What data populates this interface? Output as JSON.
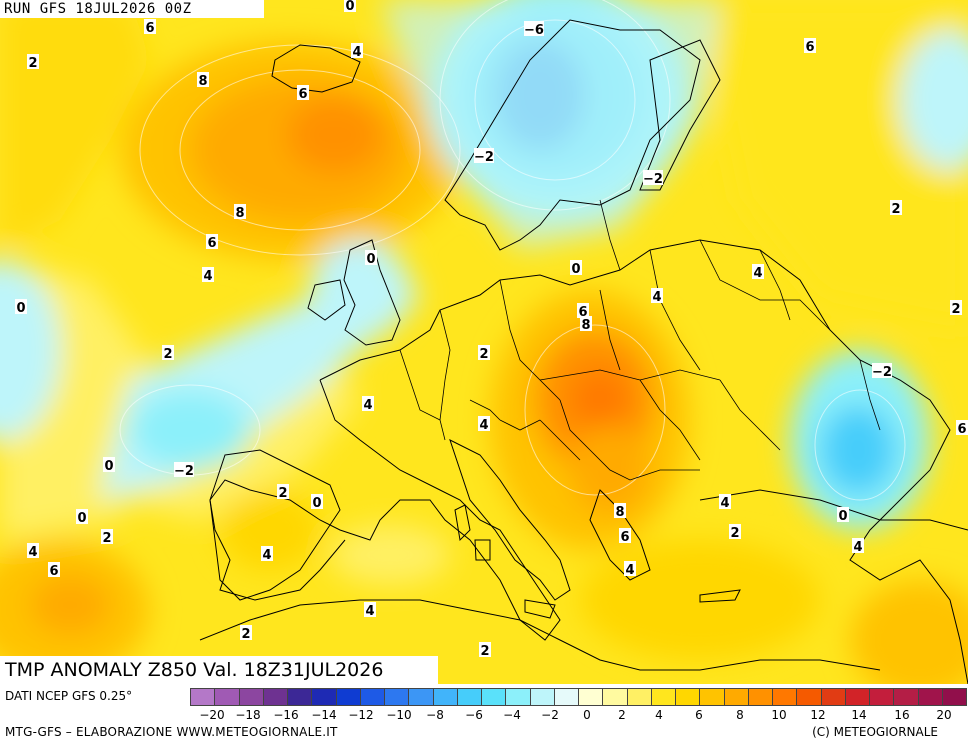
{
  "header": {
    "run_label": "RUN GFS 18JUL2026 00Z"
  },
  "title": {
    "text": "TMP ANOMALY Z850 Val. 18Z31JUL2026"
  },
  "footer": {
    "source": "DATI NCEP GFS 0.25°",
    "credit_left": "MTG-GFS – ELABORAZIONE WWW.METEOGIORNALE.IT",
    "credit_right": "(C) METEOGIORNALE"
  },
  "legend": {
    "colors": [
      "#b478c8",
      "#a05ab4",
      "#8c46a0",
      "#6e3291",
      "#3c2896",
      "#1e2ab4",
      "#0f3cd2",
      "#1e5ae6",
      "#2d78f0",
      "#3c96f5",
      "#41b4fa",
      "#46cdfa",
      "#5ae1fa",
      "#8cf0fa",
      "#bef5fa",
      "#e6fafa",
      "#ffffd2",
      "#fffaa0",
      "#fff064",
      "#ffe61e",
      "#ffd700",
      "#ffc300",
      "#ffaa00",
      "#ff9100",
      "#ff7800",
      "#f55a00",
      "#e13c14",
      "#d22328",
      "#c31e3c",
      "#b41e46",
      "#a0144b",
      "#910f4b"
    ],
    "tick_labels": [
      "-20",
      "-18",
      "-16",
      "-14",
      "-12",
      "-10",
      "-8",
      "-6",
      "-4",
      "-2",
      "0",
      "2",
      "4",
      "6",
      "8",
      "10",
      "12",
      "14",
      "16",
      "20"
    ]
  },
  "map_labels": [
    "0",
    "6",
    "2",
    "4",
    "8",
    "6",
    "8",
    "6",
    "4",
    "2",
    "0",
    "0",
    "-2",
    "-6",
    "-2",
    "6",
    "2",
    "0",
    "4",
    "6",
    "8",
    "4",
    "2",
    "2",
    "4",
    "4",
    "-2",
    "0",
    "2",
    "0",
    "4",
    "0",
    "2",
    "4",
    "6",
    "4",
    "2",
    "8",
    "6",
    "4",
    "6",
    "4",
    "2",
    "2",
    "0",
    "-2",
    "4"
  ]
}
